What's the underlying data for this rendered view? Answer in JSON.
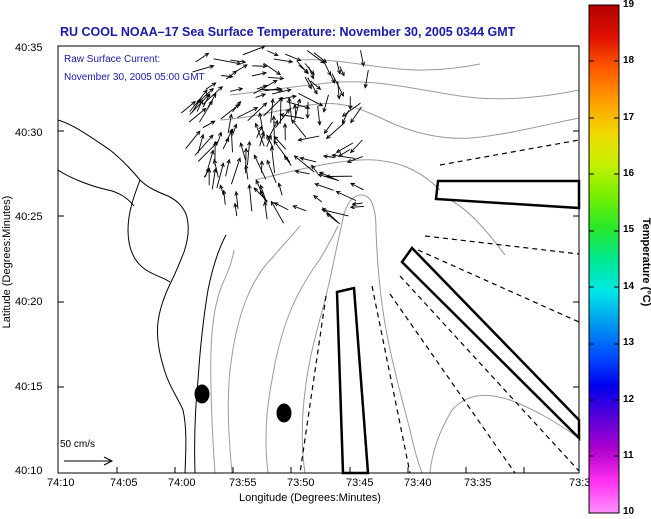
{
  "title": "RU COOL  NOAA–17  Sea Surface Temperature:  November 30, 2005 0344 GMT",
  "annotation": {
    "line1": "Raw Surface Current:",
    "line2": "November 30, 2005 05:00 GMT"
  },
  "axes": {
    "xlabel": "Longitude (Degrees:Minutes)",
    "ylabel": "Latitude (Degrees:Minutes)",
    "x_ticks": [
      "74:10",
      "74:05",
      "74:00",
      "73:55",
      "73:50",
      "73:45",
      "73:40",
      "73:35",
      "73:3"
    ],
    "y_ticks": [
      "40:35",
      "40:30",
      "40:25",
      "40:20",
      "40:15",
      "40:10"
    ]
  },
  "scale": {
    "label": "50 cm/s"
  },
  "colorbar": {
    "label": "Temperature (°C)",
    "ticks": [
      "19",
      "18",
      "17",
      "16",
      "15",
      "14",
      "13",
      "12",
      "11",
      "10"
    ],
    "colors": [
      "#b00000",
      "#e01000",
      "#ff5a00",
      "#ff9b00",
      "#f2d800",
      "#c6f000",
      "#78f000",
      "#28e828",
      "#00e890",
      "#00e8e8",
      "#009cf0",
      "#0050ff",
      "#0000ee",
      "#5a00d8",
      "#b000d0",
      "#ff30f0",
      "#ff90ff"
    ]
  }
}
